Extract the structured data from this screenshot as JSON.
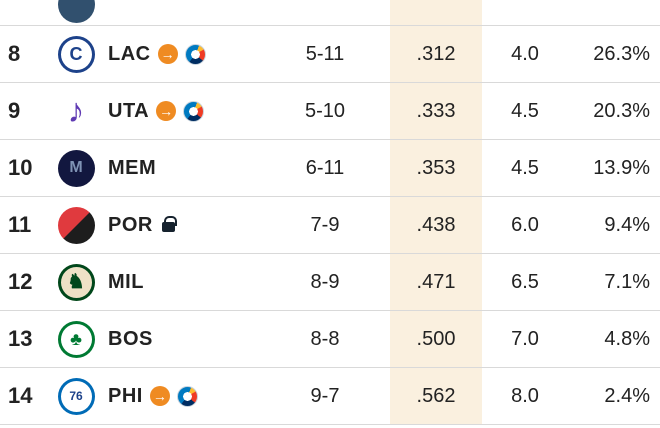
{
  "standings": {
    "pct_highlight_color": "#faf0df",
    "divider_color": "#d9d9d9",
    "icons": {
      "pick_traded_arrow_glyph": "→",
      "pick_traded_arrow_color": "#ef8b22",
      "lock_color": "#16222e",
      "okc_logo_colors": {
        "blue": "#007ac1",
        "orange": "#ef3b24",
        "navy": "#002d62",
        "yellow": "#fdbb30"
      }
    },
    "rows": [
      {
        "rank": "8",
        "team": "LAC",
        "pick_traded_to_okc": true,
        "locked": false,
        "record": "5-11",
        "pct": ".312",
        "gb": "4.0",
        "odds": "26.3%"
      },
      {
        "rank": "9",
        "team": "UTA",
        "pick_traded_to_okc": true,
        "locked": false,
        "record": "5-10",
        "pct": ".333",
        "gb": "4.5",
        "odds": "20.3%"
      },
      {
        "rank": "10",
        "team": "MEM",
        "pick_traded_to_okc": false,
        "locked": false,
        "record": "6-11",
        "pct": ".353",
        "gb": "4.5",
        "odds": "13.9%"
      },
      {
        "rank": "11",
        "team": "POR",
        "pick_traded_to_okc": false,
        "locked": true,
        "record": "7-9",
        "pct": ".438",
        "gb": "6.0",
        "odds": "9.4%"
      },
      {
        "rank": "12",
        "team": "MIL",
        "pick_traded_to_okc": false,
        "locked": false,
        "record": "8-9",
        "pct": ".471",
        "gb": "6.5",
        "odds": "7.1%"
      },
      {
        "rank": "13",
        "team": "BOS",
        "pick_traded_to_okc": false,
        "locked": false,
        "record": "8-8",
        "pct": ".500",
        "gb": "7.0",
        "odds": "4.8%"
      },
      {
        "rank": "14",
        "team": "PHI",
        "pick_traded_to_okc": true,
        "locked": false,
        "record": "9-7",
        "pct": ".562",
        "gb": "8.0",
        "odds": "2.4%"
      }
    ],
    "logos": {
      "LAC": {
        "style": "ring",
        "bg": "#ffffff",
        "ring": "#1d428a",
        "glyph": "C",
        "glyph_color": "#1d428a",
        "glyph_size": 18
      },
      "UTA": {
        "style": "glyph-only",
        "glyph": "♪",
        "glyph_color": "#5f3ab3",
        "glyph_size": 34
      },
      "MEM": {
        "style": "solid",
        "bg": "#12173f",
        "glyph": "M",
        "glyph_color": "#7f93b5",
        "glyph_size": 16
      },
      "POR": {
        "style": "split",
        "left": "#e03a3e",
        "right": "#1d1d1d"
      },
      "MIL": {
        "style": "ring",
        "bg": "#eee1c6",
        "ring": "#00471b",
        "glyph": "♞",
        "glyph_color": "#00471b",
        "glyph_size": 20
      },
      "BOS": {
        "style": "ring",
        "bg": "#ffffff",
        "ring": "#007a33",
        "glyph": "♣",
        "glyph_color": "#007a33",
        "glyph_size": 18
      },
      "PHI": {
        "style": "ring",
        "bg": "#ffffff",
        "ring": "#006bb6",
        "glyph": "76",
        "glyph_color": "#1d428a",
        "glyph_size": 12
      }
    },
    "partial_top_row": {
      "logo_visible": true
    }
  }
}
